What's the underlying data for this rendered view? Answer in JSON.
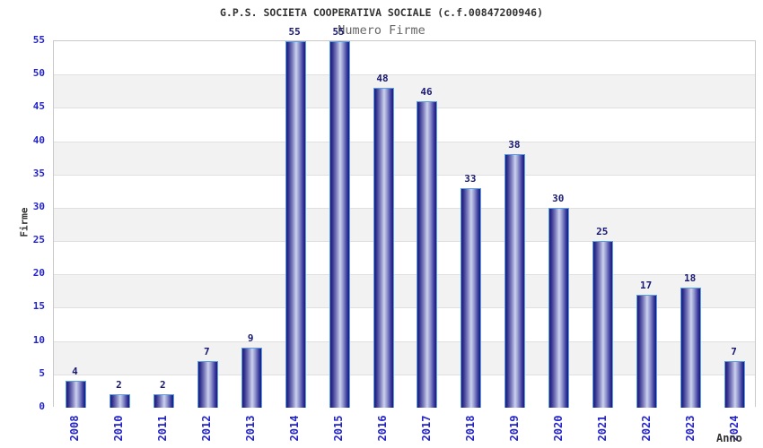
{
  "title": "G.P.S. SOCIETA COOPERATIVA SOCIALE (c.f.00847200946)",
  "subtitle": "Numero Firme",
  "chart_data": {
    "type": "bar",
    "title": "Numero Firme",
    "categories": [
      "2008",
      "2010",
      "2011",
      "2012",
      "2013",
      "2014",
      "2015",
      "2016",
      "2017",
      "2018",
      "2019",
      "2020",
      "2021",
      "2022",
      "2023",
      "2024"
    ],
    "values": [
      4,
      2,
      2,
      7,
      9,
      55,
      55,
      48,
      46,
      33,
      38,
      30,
      25,
      17,
      18,
      7
    ],
    "xlabel": "Anno",
    "ylabel": "Firme",
    "ylim": [
      0,
      55
    ],
    "ytick_step": 5,
    "yticks": [
      0,
      5,
      10,
      15,
      20,
      25,
      30,
      35,
      40,
      45,
      50,
      55
    ],
    "grid": "horizontal-bands-alternating",
    "legend": "none"
  },
  "colors": {
    "title": "#333333",
    "subtitle": "#666666",
    "tick_label": "#2323cc",
    "value_label": "#191970",
    "axis_label": "#333333",
    "bar_edge": "#1b1b7c",
    "bar_mid": "#7d7dbd",
    "bar_center": "#ccd2ee",
    "bar_border": "#5a9fe0",
    "band_gray": "#f2f2f2",
    "band_white": "#ffffff",
    "grid_line": "#e0e0e0",
    "plot_border": "#c9c9c9",
    "background": "#ffffff"
  }
}
